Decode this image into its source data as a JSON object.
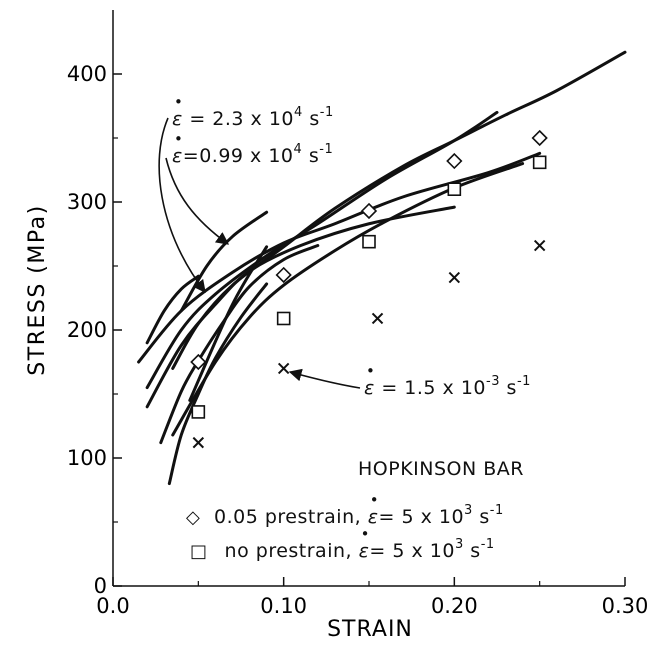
{
  "chart_data": {
    "type": "scatter",
    "xlabel": "STRAIN",
    "ylabel": "STRESS (MPa)",
    "xlim": [
      0.0,
      0.3
    ],
    "ylim": [
      0,
      450
    ],
    "x_ticks": [
      "0.0",
      "0.10",
      "0.20",
      "0.30"
    ],
    "y_ticks": [
      "0",
      "100",
      "200",
      "300",
      "400"
    ],
    "grid": false,
    "legend_title": "HOPKINSON BAR",
    "annotations": {
      "rate_high": "= 2.3 x 10",
      "rate_high_exp": "4",
      "rate_mid": "=0.99 x 10",
      "rate_mid_exp": "4",
      "rate_low": "= 1.5 x 10",
      "rate_low_exp": "-3",
      "unit": "s",
      "unit_exp": "-1",
      "legend_prestrain": "0.05 prestrain,",
      "legend_no_prestrain": "no prestrain,",
      "legend_rate": "= 5 x 10",
      "legend_rate_exp": "3"
    },
    "series": [
      {
        "name": "0.05 prestrain, ε̇ = 5 x 10^3 s^-1",
        "marker": "diamond",
        "x": [
          0.05,
          0.1,
          0.15,
          0.2,
          0.25
        ],
        "y": [
          175,
          243,
          293,
          332,
          350
        ]
      },
      {
        "name": "no prestrain, ε̇ = 5 x 10^3 s^-1",
        "marker": "square",
        "x": [
          0.05,
          0.1,
          0.15,
          0.2,
          0.25
        ],
        "y": [
          136,
          209,
          269,
          310,
          331
        ]
      },
      {
        "name": "ε̇ = 1.5 x 10^-3 s^-1",
        "marker": "x",
        "x": [
          0.05,
          0.1,
          0.155,
          0.2,
          0.25
        ],
        "y": [
          112,
          170,
          209,
          241,
          266
        ]
      }
    ],
    "curves": [
      {
        "x": [
          0.035,
          0.05,
          0.07,
          0.1,
          0.13,
          0.17,
          0.2,
          0.23,
          0.26,
          0.3
        ],
        "y": [
          170,
          205,
          235,
          265,
          295,
          328,
          348,
          368,
          387,
          417
        ]
      },
      {
        "x": [
          0.02,
          0.04,
          0.06,
          0.09,
          0.12,
          0.16,
          0.2,
          0.225
        ],
        "y": [
          155,
          200,
          228,
          258,
          283,
          318,
          348,
          370
        ]
      },
      {
        "x": [
          0.015,
          0.04,
          0.07,
          0.1,
          0.13,
          0.17,
          0.22,
          0.25
        ],
        "y": [
          175,
          215,
          245,
          268,
          283,
          304,
          323,
          338
        ]
      },
      {
        "x": [
          0.02,
          0.04,
          0.06,
          0.08,
          0.11,
          0.15,
          0.2
        ],
        "y": [
          140,
          188,
          220,
          246,
          266,
          283,
          296
        ]
      },
      {
        "x": [
          0.035,
          0.06,
          0.08,
          0.1,
          0.13,
          0.16,
          0.2,
          0.24
        ],
        "y": [
          118,
          175,
          210,
          235,
          262,
          285,
          311,
          330
        ]
      },
      {
        "x": [
          0.028,
          0.04,
          0.05,
          0.065,
          0.08,
          0.1,
          0.12
        ],
        "y": [
          112,
          152,
          176,
          207,
          234,
          255,
          266
        ]
      },
      {
        "x": [
          0.033,
          0.04,
          0.05,
          0.06,
          0.075,
          0.09
        ],
        "y": [
          80,
          118,
          150,
          178,
          210,
          236
        ]
      },
      {
        "x": [
          0.045,
          0.07,
          0.09
        ],
        "y": [
          145,
          220,
          265
        ]
      },
      {
        "x": [
          0.04,
          0.055,
          0.07,
          0.09
        ],
        "y": [
          215,
          250,
          273,
          292
        ]
      },
      {
        "x": [
          0.02,
          0.03,
          0.04,
          0.05
        ],
        "y": [
          190,
          215,
          232,
          242
        ]
      }
    ]
  }
}
